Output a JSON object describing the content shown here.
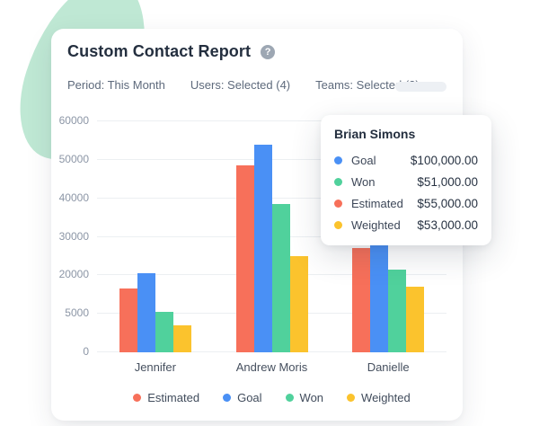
{
  "header": {
    "title": "Custom Contact Report",
    "help_glyph": "?"
  },
  "filters": [
    {
      "label": "Period: This Month"
    },
    {
      "label": "Users: Selected (4)"
    },
    {
      "label": "Teams: Selected (2)"
    }
  ],
  "chart_data": {
    "type": "bar",
    "title": "Custom Contact Report",
    "categories": [
      "Jennifer",
      "Andrew Moris",
      "Danielle"
    ],
    "series": [
      {
        "name": "Estimated",
        "color": "#F7705A",
        "values": [
          16500,
          48500,
          27000
        ]
      },
      {
        "name": "Goal",
        "color": "#4A90F5",
        "values": [
          20500,
          54000,
          28500
        ]
      },
      {
        "name": "Won",
        "color": "#50D19C",
        "values": [
          10500,
          38500,
          21500
        ]
      },
      {
        "name": "Weighted",
        "color": "#FBC32D",
        "values": [
          7000,
          25000,
          17000
        ]
      }
    ],
    "ylim": [
      0,
      60000
    ],
    "ytick_labels": [
      "0",
      "5000",
      "20000",
      "30000",
      "40000",
      "50000",
      "60000"
    ],
    "grid": true,
    "legend_position": "bottom",
    "xlabel": "",
    "ylabel": ""
  },
  "tooltip": {
    "title": "Brian Simons",
    "rows": [
      {
        "label": "Goal",
        "color": "#4A90F5",
        "value": "$100,000.00"
      },
      {
        "label": "Won",
        "color": "#50D19C",
        "value": "$51,000.00"
      },
      {
        "label": "Estimated",
        "color": "#F7705A",
        "value": "$55,000.00"
      },
      {
        "label": "Weighted",
        "color": "#FBC32D",
        "value": "$53,000.00"
      }
    ]
  },
  "colors": {
    "blob": "#BFE8D4",
    "card_bg": "#FFFFFF",
    "title_text": "#242F3F",
    "muted_text": "#5E6A7C",
    "axis_text": "#8C96A6",
    "gridline": "#ECEFF2",
    "pill": "#EDF0F4",
    "help_icon_bg": "#9DA7B3"
  }
}
